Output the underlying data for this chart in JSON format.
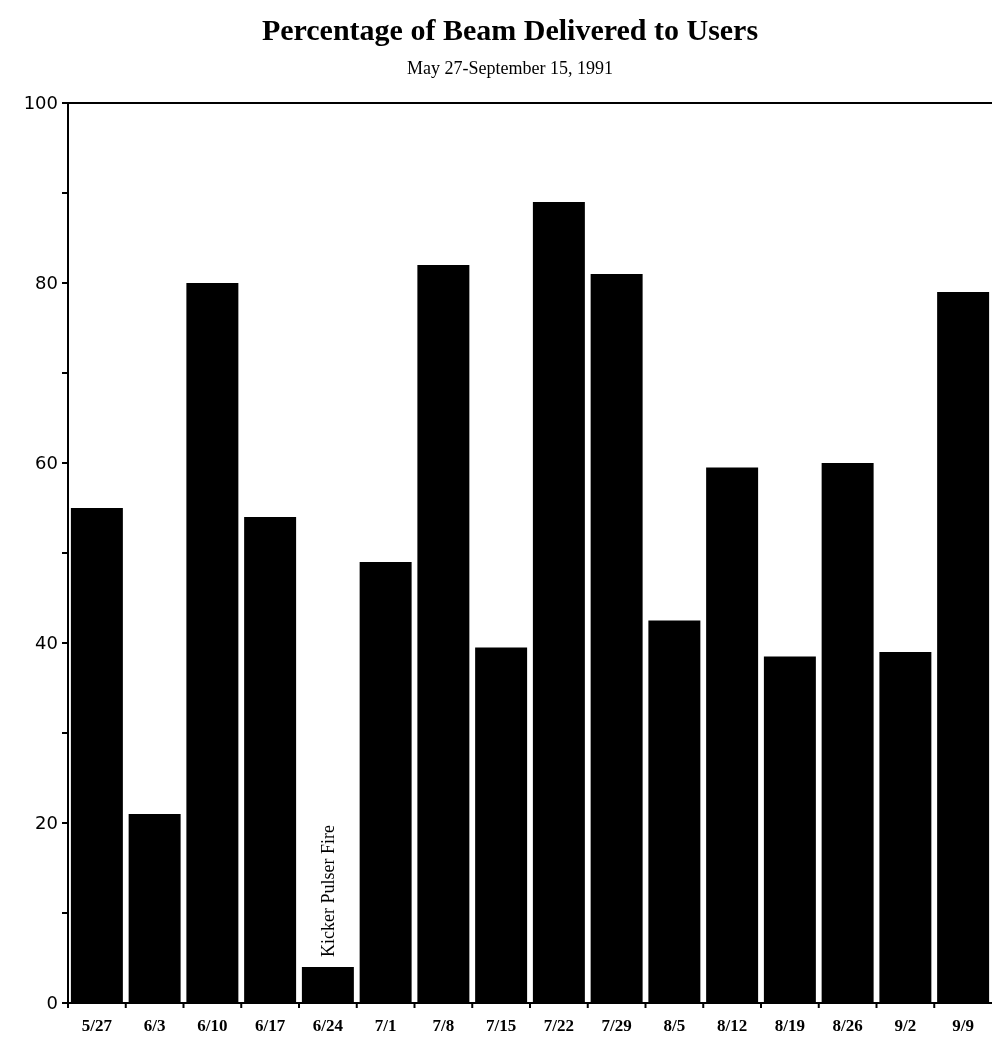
{
  "chart_data": {
    "type": "bar",
    "title": "Percentage of Beam Delivered to Users",
    "subtitle": "May 27-September 15, 1991",
    "categories": [
      "5/27",
      "6/3",
      "6/10",
      "6/17",
      "6/24",
      "7/1",
      "7/8",
      "7/15",
      "7/22",
      "7/29",
      "8/5",
      "8/12",
      "8/19",
      "8/26",
      "9/2",
      "9/9"
    ],
    "values": [
      55,
      21,
      80,
      54,
      4,
      49,
      82,
      39.5,
      89,
      81,
      42.5,
      59.5,
      38.5,
      60,
      39,
      79
    ],
    "color": "#000000",
    "ylim": [
      0,
      100
    ],
    "yticks": [
      0,
      {
        "value": 10,
        "label": null
      },
      20,
      {
        "value": 30,
        "label": null
      },
      40,
      {
        "value": 50,
        "label": null
      },
      60,
      {
        "value": 70,
        "label": null
      },
      80,
      {
        "value": 90,
        "label": null
      },
      100
    ],
    "grid": false,
    "annotations": [
      {
        "text": "Kicker Pulser Fire",
        "x": "6/24",
        "y": 4
      }
    ]
  }
}
